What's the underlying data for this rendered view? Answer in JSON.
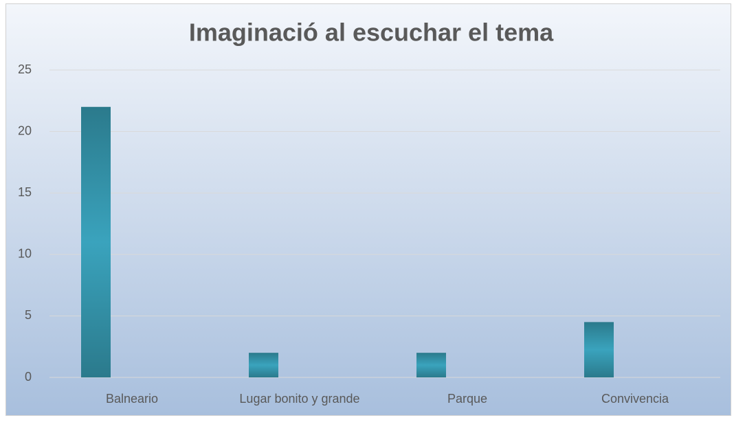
{
  "chart_data": {
    "type": "bar",
    "title": "Imaginació al escuchar el tema",
    "categories": [
      "Balneario",
      "Lugar bonito y grande",
      "Parque",
      "Convivencia"
    ],
    "values": [
      22,
      2,
      2,
      4.5
    ],
    "color": "#3aa3bd",
    "ylim": [
      0,
      25
    ],
    "yticks": [
      0,
      5,
      10,
      15,
      20,
      25
    ],
    "grid": true
  }
}
